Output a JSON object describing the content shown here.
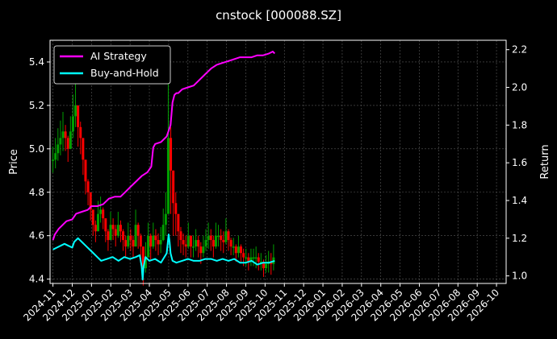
{
  "chart_data": {
    "type": "line",
    "title": "cnstock [000088.SZ]",
    "ylabel_left": "Price",
    "ylabel_right": "Return",
    "ylim_left": [
      4.38,
      5.5
    ],
    "ylim_right": [
      0.96,
      2.25
    ],
    "left_ticks": [
      "4.4",
      "4.6",
      "4.8",
      "5.0",
      "5.2",
      "5.4"
    ],
    "right_ticks": [
      "1.0",
      "1.2",
      "1.4",
      "1.6",
      "1.8",
      "2.0",
      "2.2"
    ],
    "x_ticks": [
      "2024-11",
      "2024-12",
      "2025-01",
      "2025-02",
      "2025-03",
      "2025-04",
      "2025-05",
      "2025-06",
      "2025-07",
      "2025-08",
      "2025-09",
      "2025-10",
      "2025-11",
      "2025-12",
      "2026-01",
      "2026-02",
      "2026-03",
      "2026-04",
      "2026-05",
      "2026-06",
      "2026-07",
      "2026-08",
      "2026-09",
      "2026-10"
    ],
    "xlim_months": [
      -0.15,
      23.5
    ],
    "grid": true,
    "legend_position": "top-left",
    "colors": {
      "ai": "#ff00ff",
      "bh": "#00ffff",
      "up": "#00a000",
      "down": "#ff0000"
    },
    "series": [
      {
        "name": "AI Strategy",
        "axis": "right",
        "x": [
          0.0,
          0.1,
          0.3,
          0.5,
          0.7,
          1.0,
          1.2,
          1.5,
          1.8,
          2.0,
          2.3,
          2.6,
          2.9,
          3.2,
          3.5,
          3.8,
          4.0,
          4.3,
          4.6,
          4.9,
          5.1,
          5.2,
          5.3,
          5.6,
          5.9,
          6.1,
          6.2,
          6.3,
          6.4,
          6.5,
          6.7,
          7.0,
          7.3,
          7.6,
          7.9,
          8.2,
          8.5,
          8.8,
          9.1,
          9.4,
          9.7,
          10.0,
          10.3,
          10.6,
          10.9,
          11.2,
          11.4,
          11.5
        ],
        "values": [
          1.19,
          1.22,
          1.25,
          1.27,
          1.29,
          1.3,
          1.33,
          1.34,
          1.35,
          1.37,
          1.37,
          1.38,
          1.41,
          1.42,
          1.42,
          1.45,
          1.47,
          1.5,
          1.53,
          1.55,
          1.58,
          1.68,
          1.7,
          1.71,
          1.74,
          1.8,
          1.92,
          1.96,
          1.97,
          1.97,
          1.99,
          2.0,
          2.01,
          2.04,
          2.07,
          2.1,
          2.12,
          2.13,
          2.14,
          2.15,
          2.16,
          2.16,
          2.16,
          2.17,
          2.17,
          2.18,
          2.19,
          2.18
        ]
      },
      {
        "name": "Buy-and-Hold",
        "axis": "right",
        "x": [
          0.0,
          0.2,
          0.4,
          0.6,
          0.8,
          1.0,
          1.1,
          1.3,
          1.5,
          1.7,
          1.9,
          2.1,
          2.3,
          2.5,
          2.8,
          3.1,
          3.4,
          3.7,
          4.0,
          4.3,
          4.5,
          4.6,
          4.65,
          4.7,
          4.8,
          5.0,
          5.3,
          5.6,
          5.9,
          6.0,
          6.05,
          6.1,
          6.2,
          6.4,
          6.7,
          7.0,
          7.3,
          7.6,
          7.9,
          8.2,
          8.5,
          8.8,
          9.1,
          9.4,
          9.7,
          10.0,
          10.3,
          10.6,
          10.9,
          11.2,
          11.5
        ],
        "values": [
          1.14,
          1.15,
          1.16,
          1.17,
          1.16,
          1.15,
          1.18,
          1.2,
          1.18,
          1.16,
          1.14,
          1.12,
          1.1,
          1.08,
          1.09,
          1.1,
          1.08,
          1.1,
          1.09,
          1.1,
          1.11,
          1.05,
          0.98,
          1.05,
          1.1,
          1.08,
          1.09,
          1.07,
          1.12,
          1.22,
          1.18,
          1.12,
          1.08,
          1.07,
          1.08,
          1.09,
          1.08,
          1.08,
          1.09,
          1.09,
          1.08,
          1.09,
          1.08,
          1.09,
          1.07,
          1.07,
          1.08,
          1.06,
          1.07,
          1.07,
          1.08
        ]
      }
    ],
    "candles": {
      "axis": "left",
      "x": [
        0.0,
        0.13,
        0.26,
        0.39,
        0.52,
        0.65,
        0.78,
        0.91,
        1.04,
        1.17,
        1.3,
        1.43,
        1.56,
        1.69,
        1.82,
        1.95,
        2.08,
        2.21,
        2.34,
        2.47,
        2.6,
        2.73,
        2.86,
        2.99,
        3.12,
        3.25,
        3.38,
        3.51,
        3.64,
        3.77,
        3.9,
        4.03,
        4.16,
        4.29,
        4.42,
        4.55,
        4.68,
        4.81,
        4.94,
        5.07,
        5.2,
        5.33,
        5.46,
        5.59,
        5.72,
        5.85,
        5.98,
        6.11,
        6.24,
        6.37,
        6.5,
        6.63,
        6.76,
        6.89,
        7.02,
        7.15,
        7.28,
        7.41,
        7.54,
        7.67,
        7.8,
        7.93,
        8.06,
        8.19,
        8.32,
        8.45,
        8.58,
        8.71,
        8.84,
        8.97,
        9.1,
        9.23,
        9.36,
        9.49,
        9.62,
        9.75,
        9.88,
        10.01,
        10.14,
        10.27,
        10.4,
        10.53,
        10.66,
        10.79,
        10.92,
        11.05,
        11.18,
        11.31,
        11.44
      ],
      "price": [
        4.95,
        4.98,
        5.02,
        5.05,
        5.08,
        5.05,
        5.0,
        5.08,
        5.15,
        5.2,
        5.1,
        5.05,
        4.95,
        4.85,
        4.8,
        4.72,
        4.65,
        4.62,
        4.7,
        4.72,
        4.68,
        4.62,
        4.58,
        4.65,
        4.63,
        4.6,
        4.65,
        4.62,
        4.58,
        4.55,
        4.6,
        4.58,
        4.55,
        4.65,
        4.6,
        4.55,
        4.45,
        4.5,
        4.6,
        4.55,
        4.6,
        4.58,
        4.56,
        4.58,
        4.65,
        4.7,
        5.05,
        4.9,
        4.75,
        4.7,
        4.62,
        4.58,
        4.56,
        4.55,
        4.6,
        4.55,
        4.55,
        4.58,
        4.55,
        4.52,
        4.55,
        4.58,
        4.6,
        4.58,
        4.55,
        4.6,
        4.6,
        4.58,
        4.57,
        4.62,
        4.58,
        4.55,
        4.55,
        4.52,
        4.55,
        4.52,
        4.5,
        4.5,
        4.48,
        4.5,
        4.5,
        4.5,
        4.48,
        4.48,
        4.45,
        4.47,
        4.48,
        4.47,
        4.5
      ],
      "range": [
        0.12,
        0.14,
        0.15,
        0.16,
        0.18,
        0.12,
        0.12,
        0.14,
        0.2,
        0.2,
        0.18,
        0.15,
        0.14,
        0.12,
        0.12,
        0.1,
        0.1,
        0.1,
        0.12,
        0.12,
        0.1,
        0.1,
        0.1,
        0.12,
        0.1,
        0.1,
        0.12,
        0.1,
        0.1,
        0.1,
        0.12,
        0.1,
        0.1,
        0.14,
        0.12,
        0.12,
        0.16,
        0.14,
        0.12,
        0.12,
        0.12,
        0.1,
        0.1,
        0.12,
        0.15,
        0.2,
        0.5,
        0.4,
        0.3,
        0.2,
        0.14,
        0.12,
        0.1,
        0.1,
        0.12,
        0.1,
        0.1,
        0.1,
        0.1,
        0.1,
        0.1,
        0.1,
        0.12,
        0.1,
        0.1,
        0.12,
        0.1,
        0.1,
        0.1,
        0.12,
        0.1,
        0.08,
        0.08,
        0.08,
        0.1,
        0.08,
        0.08,
        0.08,
        0.08,
        0.08,
        0.08,
        0.1,
        0.08,
        0.08,
        0.08,
        0.08,
        0.1,
        0.1,
        0.12
      ]
    }
  }
}
